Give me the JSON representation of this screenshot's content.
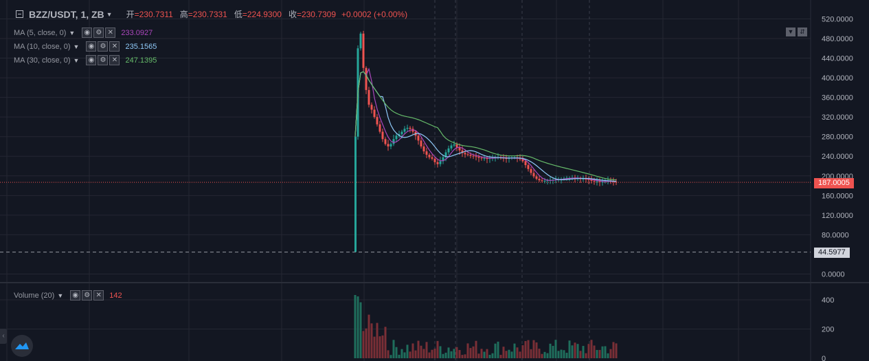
{
  "header": {
    "symbol": "BZZ/USDT, 1, ZB",
    "open_label": "开",
    "open": "=230.7311",
    "high_label": "高",
    "high": "=230.7331",
    "low_label": "低",
    "low": "=224.9300",
    "close_label": "收",
    "close": "=230.7309",
    "change": "+0.0002 (+0.00%)"
  },
  "indicators": [
    {
      "label": "MA (5, close, 0)",
      "value": "233.0927",
      "color": "#ab47bc"
    },
    {
      "label": "MA (10, close, 0)",
      "value": "235.1565",
      "color": "#90caf9"
    },
    {
      "label": "MA (30, close, 0)",
      "value": "247.1395",
      "color": "#66bb6a"
    }
  ],
  "volume_indicator": {
    "label": "Volume (20)",
    "value": "142"
  },
  "price_axis_labels": [
    "520.0000",
    "480.0000",
    "440.0000",
    "400.0000",
    "360.0000",
    "320.0000",
    "280.0000",
    "240.0000",
    "200.0000",
    "160.0000",
    "120.0000",
    "80.0000",
    "0.0000"
  ],
  "volume_axis_labels": [
    "400",
    "200",
    "0"
  ],
  "last_price_tag": "187.0005",
  "crosshair_price_tag": "44.5977",
  "colors": {
    "up": "#26a69a",
    "down": "#ef5350",
    "background": "#131722",
    "grid": "#242733",
    "axis_text": "#b2b5be"
  },
  "chart_data": {
    "type": "candlestick",
    "symbol": "BZZ/USDT",
    "interval": "1",
    "exchange": "ZB",
    "price_ylim": [
      0,
      530
    ],
    "price_ticks": [
      0,
      80,
      120,
      160,
      200,
      240,
      280,
      320,
      360,
      400,
      440,
      480,
      520
    ],
    "volume_ylim": [
      0,
      470
    ],
    "volume_ticks": [
      0,
      200,
      400
    ],
    "last_price": 187.0005,
    "crosshair_price": 44.5977,
    "ma5_last": 233.0927,
    "ma10_last": 235.1565,
    "ma30_last": 247.1395,
    "volume_last": 142,
    "price_path": [
      [
        0,
        280
      ],
      [
        1,
        460
      ],
      [
        2,
        490
      ],
      [
        3,
        420
      ],
      [
        4,
        375
      ],
      [
        5,
        345
      ],
      [
        6,
        335
      ],
      [
        7,
        320
      ],
      [
        8,
        305
      ],
      [
        9,
        290
      ],
      [
        10,
        275
      ],
      [
        11,
        265
      ],
      [
        12,
        260
      ],
      [
        13,
        265
      ],
      [
        14,
        275
      ],
      [
        15,
        282
      ],
      [
        16,
        285
      ],
      [
        17,
        290
      ],
      [
        18,
        296
      ],
      [
        19,
        298
      ],
      [
        20,
        296
      ],
      [
        21,
        290
      ],
      [
        22,
        282
      ],
      [
        23,
        272
      ],
      [
        24,
        260
      ],
      [
        25,
        250
      ],
      [
        26,
        243
      ],
      [
        27,
        238
      ],
      [
        28,
        235
      ],
      [
        29,
        228
      ],
      [
        30,
        224
      ],
      [
        31,
        230
      ],
      [
        32,
        238
      ],
      [
        33,
        248
      ],
      [
        34,
        256
      ],
      [
        35,
        262
      ],
      [
        36,
        264
      ],
      [
        37,
        258
      ],
      [
        38,
        252
      ],
      [
        39,
        247
      ],
      [
        40,
        244
      ],
      [
        41,
        243
      ],
      [
        42,
        241
      ],
      [
        43,
        240
      ],
      [
        44,
        239
      ],
      [
        45,
        237
      ],
      [
        46,
        236
      ],
      [
        47,
        236
      ],
      [
        48,
        235
      ],
      [
        49,
        236
      ],
      [
        50,
        237
      ],
      [
        51,
        238
      ],
      [
        52,
        238
      ],
      [
        53,
        237
      ],
      [
        54,
        236
      ],
      [
        55,
        235
      ],
      [
        56,
        236
      ],
      [
        57,
        237
      ],
      [
        58,
        237
      ],
      [
        59,
        236
      ],
      [
        60,
        234
      ],
      [
        61,
        230
      ],
      [
        62,
        222
      ],
      [
        63,
        214
      ],
      [
        64,
        206
      ],
      [
        65,
        199
      ],
      [
        66,
        194
      ],
      [
        67,
        191
      ],
      [
        68,
        190
      ],
      [
        69,
        190
      ],
      [
        70,
        191
      ],
      [
        71,
        192
      ],
      [
        72,
        192
      ],
      [
        73,
        193
      ],
      [
        74,
        193
      ],
      [
        75,
        194
      ],
      [
        76,
        195
      ],
      [
        77,
        196
      ],
      [
        78,
        196
      ],
      [
        79,
        196
      ],
      [
        80,
        195
      ],
      [
        81,
        195
      ],
      [
        82,
        194
      ],
      [
        83,
        194
      ],
      [
        84,
        193
      ],
      [
        85,
        192
      ],
      [
        86,
        190
      ],
      [
        87,
        189
      ],
      [
        88,
        189
      ],
      [
        89,
        188
      ],
      [
        90,
        188
      ],
      [
        91,
        189
      ],
      [
        92,
        190
      ],
      [
        93,
        189
      ],
      [
        94,
        188
      ],
      [
        95,
        187
      ]
    ],
    "spike_low": 45
  }
}
